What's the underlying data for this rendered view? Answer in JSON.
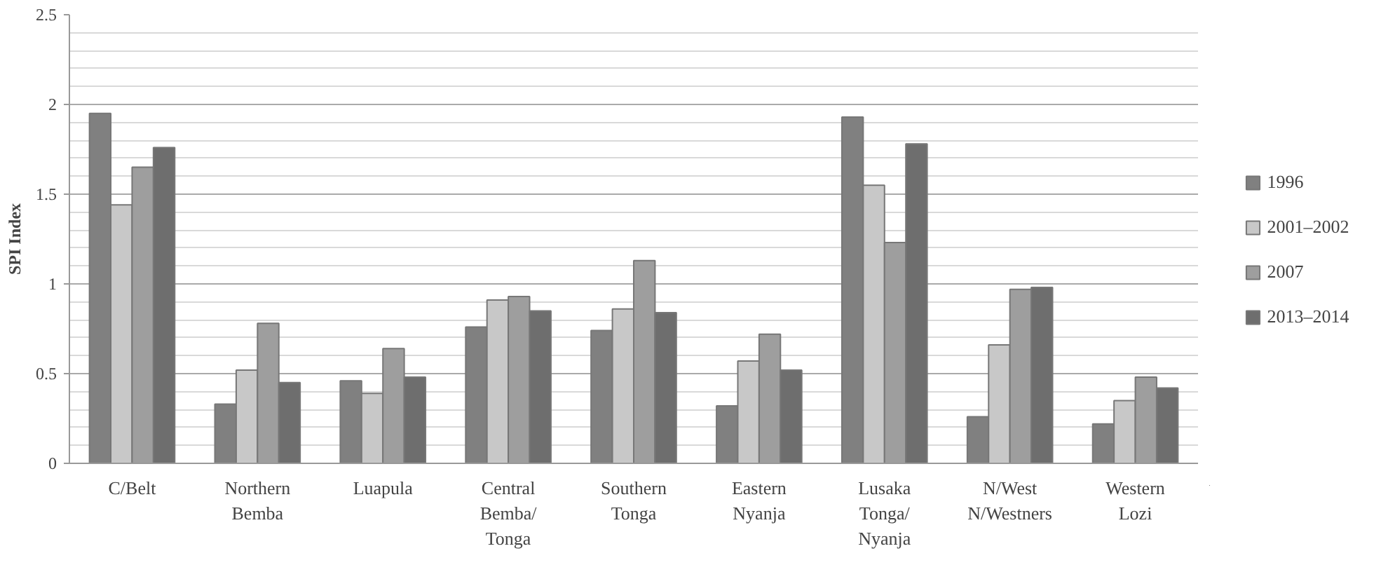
{
  "chart_data": {
    "type": "bar",
    "ylabel": "SPI Index",
    "categories": [
      "C/Belt",
      "Northern Bemba",
      "Luapula",
      "Central Bemba/ Tonga",
      "Southern Tonga",
      "Eastern Nyanja",
      "Lusaka Tonga/ Nyanja",
      "N/West N/Westners",
      "Western Lozi"
    ],
    "series": [
      {
        "name": "1996",
        "color": "#808080",
        "values": [
          1.95,
          0.33,
          0.46,
          0.76,
          0.74,
          0.32,
          1.93,
          0.26,
          0.22
        ]
      },
      {
        "name": "2001–2002",
        "color": "#c8c8c8",
        "values": [
          1.44,
          0.52,
          0.39,
          0.91,
          0.86,
          0.57,
          1.55,
          0.66,
          0.35
        ]
      },
      {
        "name": "2007",
        "color": "#9e9e9e",
        "values": [
          1.65,
          0.78,
          0.64,
          0.93,
          1.13,
          0.72,
          1.23,
          0.97,
          0.48
        ]
      },
      {
        "name": "2013–2014",
        "color": "#6e6e6e",
        "values": [
          1.76,
          0.45,
          0.48,
          0.85,
          0.84,
          0.52,
          1.78,
          0.98,
          0.42
        ]
      }
    ],
    "ylim": [
      0,
      2.5
    ],
    "yticks": [
      0,
      0.5,
      1,
      1.5,
      2,
      2.5
    ],
    "grid": "y",
    "legend": "right"
  }
}
